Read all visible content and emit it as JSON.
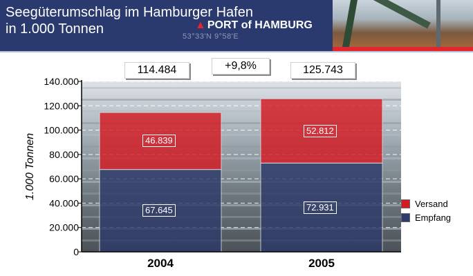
{
  "header": {
    "title_line1": "Seegüterumschlag im Hamburger Hafen",
    "title_line2": "in 1.000 Tonnen",
    "logo_text": "PORT of HAMBURG",
    "coordinates": "53°33'N 9°58'E"
  },
  "colors": {
    "header_bg": "#2b3a6e",
    "accent_red": "#e2262d",
    "versand": "#d51a22",
    "empfang": "#2e3a6a"
  },
  "annotations": {
    "total_2004": "114.484",
    "total_2005": "125.743",
    "growth": "+9,8%"
  },
  "chart_data": {
    "type": "bar",
    "stacked": true,
    "categories": [
      "2004",
      "2005"
    ],
    "series": [
      {
        "name": "Empfang",
        "values": [
          67645,
          72931
        ],
        "labels": [
          "67.645",
          "72.931"
        ],
        "color": "#2e3a6a"
      },
      {
        "name": "Versand",
        "values": [
          46839,
          52812
        ],
        "labels": [
          "46.839",
          "52.812"
        ],
        "color": "#d51a22"
      }
    ],
    "ylabel": "1.000 Tonnen",
    "ylim": [
      0,
      140000
    ],
    "yticks": [
      0,
      20000,
      40000,
      60000,
      80000,
      100000,
      120000,
      140000
    ],
    "ytick_labels": [
      "0",
      "20.000",
      "40.000",
      "60.000",
      "80.000",
      "100.000",
      "120.000",
      "140.000"
    ],
    "legend": [
      "Versand",
      "Empfang"
    ],
    "legend_position": "bottom-right",
    "grid": true
  }
}
